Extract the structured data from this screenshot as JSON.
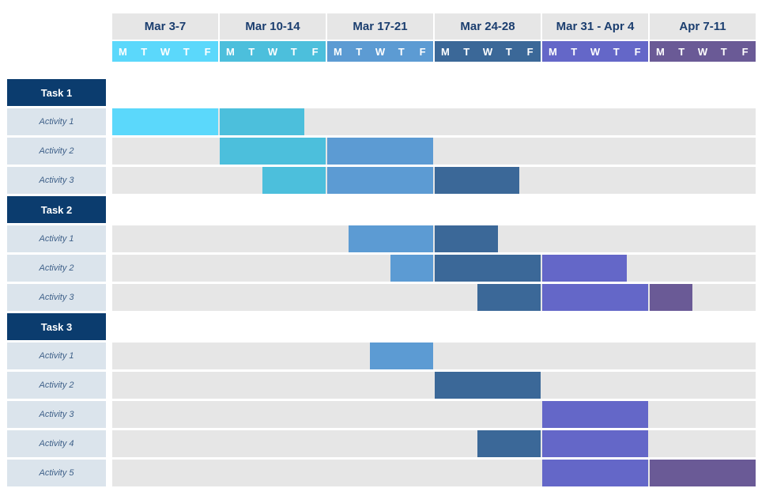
{
  "weeks": [
    {
      "label": "Mar 3-7",
      "color": "#5bd8fb"
    },
    {
      "label": "Mar 10-14",
      "color": "#4cbfdc"
    },
    {
      "label": "Mar 17-21",
      "color": "#5c9bd3"
    },
    {
      "label": "Mar 24-28",
      "color": "#3b6898"
    },
    {
      "label": "Mar 31 - Apr 4",
      "color": "#6467c8"
    },
    {
      "label": "Apr 7-11",
      "color": "#6a5a96"
    }
  ],
  "days": [
    "M",
    "T",
    "W",
    "T",
    "F"
  ],
  "tasks": [
    {
      "label": "Task 1",
      "activities": [
        {
          "label": "Activity 1",
          "start_day": 0,
          "end_day": 9
        },
        {
          "label": "Activity 2",
          "start_day": 5,
          "end_day": 15
        },
        {
          "label": "Activity 3",
          "start_day": 7,
          "end_day": 19
        }
      ]
    },
    {
      "label": "Task 2",
      "activities": [
        {
          "label": "Activity 1",
          "start_day": 11,
          "end_day": 18
        },
        {
          "label": "Activity 2",
          "start_day": 13,
          "end_day": 24
        },
        {
          "label": "Activity 3",
          "start_day": 17,
          "end_day": 27
        }
      ]
    },
    {
      "label": "Task 3",
      "activities": [
        {
          "label": "Activity 1",
          "start_day": 12,
          "end_day": 15
        },
        {
          "label": "Activity 2",
          "start_day": 15,
          "end_day": 20
        },
        {
          "label": "Activity 3",
          "start_day": 20,
          "end_day": 25
        },
        {
          "label": "Activity 4",
          "start_day": 17,
          "end_day": 25
        },
        {
          "label": "Activity 5",
          "start_day": 20,
          "end_day": 30
        }
      ]
    }
  ]
}
